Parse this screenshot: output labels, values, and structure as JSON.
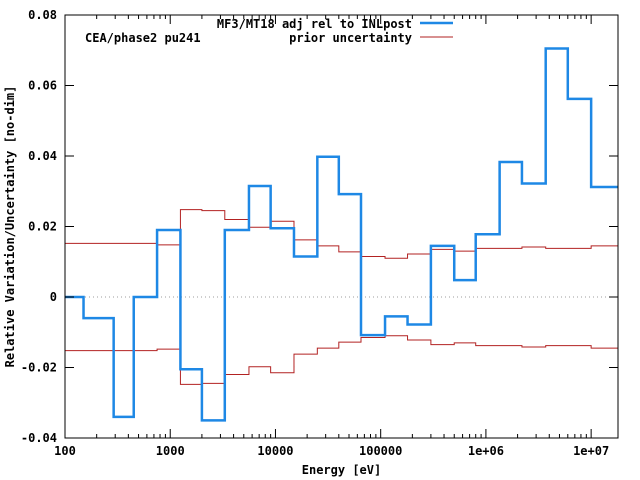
{
  "chart_data": {
    "type": "line",
    "title": "",
    "annotation": "CEA/phase2 pu241",
    "xlabel": "Energy [eV]",
    "ylabel": "Relative Variation/Uncertainty [no-dim]",
    "xscale": "log",
    "xlim": [
      100,
      18000000
    ],
    "ylim": [
      -0.04,
      0.08
    ],
    "grid": false,
    "legend_position": "top-right",
    "x_ticks": [
      {
        "value": 100,
        "label": "100"
      },
      {
        "value": 1000,
        "label": "1000"
      },
      {
        "value": 10000,
        "label": "10000"
      },
      {
        "value": 100000,
        "label": "100000"
      },
      {
        "value": 1000000,
        "label": "1e+06"
      },
      {
        "value": 10000000,
        "label": "1e+07"
      }
    ],
    "y_ticks": [
      {
        "value": -0.04,
        "label": "-0.04"
      },
      {
        "value": -0.02,
        "label": "-0.02"
      },
      {
        "value": 0,
        "label": "0"
      },
      {
        "value": 0.02,
        "label": "0.02"
      },
      {
        "value": 0.04,
        "label": "0.04"
      },
      {
        "value": 0.06,
        "label": "0.06"
      },
      {
        "value": 0.08,
        "label": "0.08"
      }
    ],
    "zero_line": true,
    "series": [
      {
        "name": "MF3/MT18 adj rel to INLpost",
        "color": "#1e88e5",
        "style": "step",
        "bin_edges": [
          100,
          150,
          290,
          450,
          750,
          1250,
          2000,
          3300,
          5600,
          9000,
          15000,
          25000,
          40000,
          65000,
          110000,
          180000,
          300000,
          500000,
          800000,
          1350000,
          2200000,
          3700000,
          6000000,
          10000000,
          18000000
        ],
        "values": [
          0.0,
          -0.006,
          -0.034,
          0.0,
          0.019,
          -0.0205,
          -0.035,
          0.019,
          0.0315,
          0.0195,
          0.0115,
          0.0398,
          0.0292,
          -0.0108,
          -0.0055,
          -0.0078,
          0.0145,
          0.0048,
          0.0178,
          0.0383,
          0.0322,
          0.0705,
          0.0562,
          0.0312
        ]
      },
      {
        "name": "prior uncertainty",
        "color": "#b22222",
        "style": "step",
        "symmetric": true,
        "bin_edges": [
          100,
          450,
          750,
          1250,
          2000,
          3300,
          5600,
          9000,
          15000,
          25000,
          40000,
          65000,
          110000,
          180000,
          300000,
          500000,
          800000,
          1350000,
          2200000,
          3700000,
          6000000,
          10000000,
          18000000
        ],
        "values": [
          0.0152,
          0.0152,
          0.0148,
          0.0248,
          0.0245,
          0.022,
          0.0198,
          0.0215,
          0.0162,
          0.0145,
          0.0128,
          0.0115,
          0.011,
          0.0122,
          0.0135,
          0.013,
          0.0138,
          0.0138,
          0.0142,
          0.0138,
          0.0138,
          0.0145
        ]
      }
    ]
  }
}
